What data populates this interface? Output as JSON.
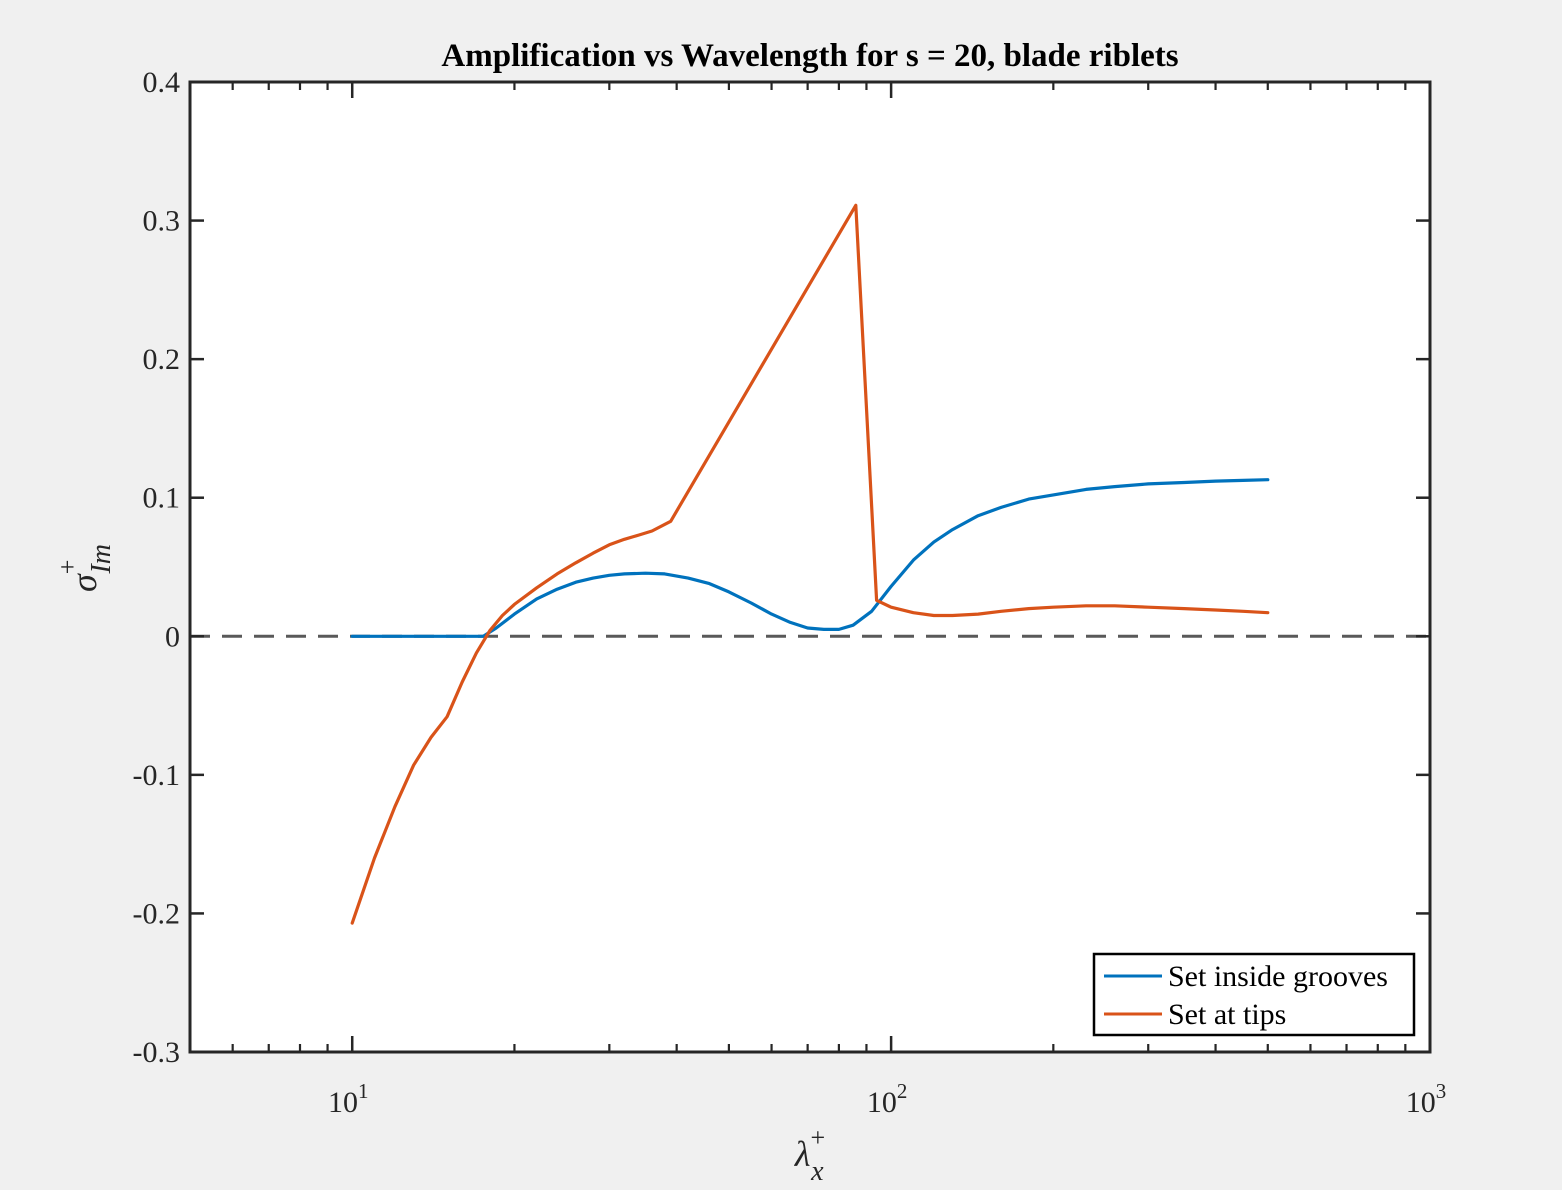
{
  "chart_data": {
    "type": "line",
    "title": "Amplification vs Wavelength for s = 20, blade riblets",
    "xlabel": {
      "base": "λ",
      "sub": "x",
      "sup": "+"
    },
    "ylabel": {
      "base": "σ",
      "sub": "Im",
      "sup": "+"
    },
    "xscale": "log",
    "xlim": [
      5,
      1000
    ],
    "ylim": [
      -0.3,
      0.4
    ],
    "yticks": [
      -0.3,
      -0.2,
      -0.1,
      0,
      0.1,
      0.2,
      0.3,
      0.4
    ],
    "ytick_labels": [
      "-0.3",
      "-0.2",
      "-0.1",
      "0",
      "0.1",
      "0.2",
      "0.3",
      "0.4"
    ],
    "xticks_major": [
      {
        "base": "10",
        "exp": "1",
        "value": 10
      },
      {
        "base": "10",
        "exp": "2",
        "value": 100
      },
      {
        "base": "10",
        "exp": "3",
        "value": 1000
      }
    ],
    "grid": false,
    "legend_position": "bottom-right",
    "reference_line": {
      "y": 0,
      "style": "dashed",
      "color": "#595959"
    },
    "series": [
      {
        "name": "Set inside grooves",
        "color": "#0072BD",
        "x": [
          10,
          11,
          12,
          13,
          14,
          15,
          16,
          17.5,
          18.5,
          20,
          22,
          24,
          26,
          28,
          30,
          32,
          35,
          38,
          42,
          46,
          50,
          55,
          60,
          65,
          70,
          75,
          80,
          85,
          92,
          100,
          110,
          120,
          130,
          145,
          160,
          180,
          200,
          230,
          260,
          300,
          350,
          400,
          450,
          500
        ],
        "values": [
          0,
          0,
          0,
          0,
          0,
          0,
          0,
          0,
          0.006,
          0.016,
          0.027,
          0.034,
          0.039,
          0.042,
          0.044,
          0.045,
          0.0455,
          0.045,
          0.042,
          0.038,
          0.032,
          0.024,
          0.016,
          0.01,
          0.006,
          0.005,
          0.005,
          0.008,
          0.018,
          0.036,
          0.055,
          0.068,
          0.077,
          0.087,
          0.093,
          0.099,
          0.102,
          0.106,
          0.108,
          0.11,
          0.111,
          0.112,
          0.1125,
          0.113
        ]
      },
      {
        "name": "Set at tips",
        "color": "#D95319",
        "x": [
          10,
          11,
          12,
          13,
          14,
          15,
          16,
          17,
          18,
          19,
          20,
          22,
          24,
          26,
          28,
          30,
          32,
          34,
          36,
          39,
          86,
          94,
          100,
          110,
          120,
          130,
          145,
          160,
          180,
          200,
          230,
          260,
          300,
          350,
          400,
          450,
          500
        ],
        "values": [
          -0.207,
          -0.16,
          -0.123,
          -0.093,
          -0.073,
          -0.058,
          -0.033,
          -0.012,
          0.004,
          0.015,
          0.023,
          0.035,
          0.045,
          0.053,
          0.06,
          0.066,
          0.07,
          0.073,
          0.076,
          0.083,
          0.311,
          0.026,
          0.021,
          0.017,
          0.015,
          0.015,
          0.016,
          0.018,
          0.02,
          0.021,
          0.022,
          0.022,
          0.021,
          0.02,
          0.019,
          0.018,
          0.017
        ]
      }
    ]
  }
}
